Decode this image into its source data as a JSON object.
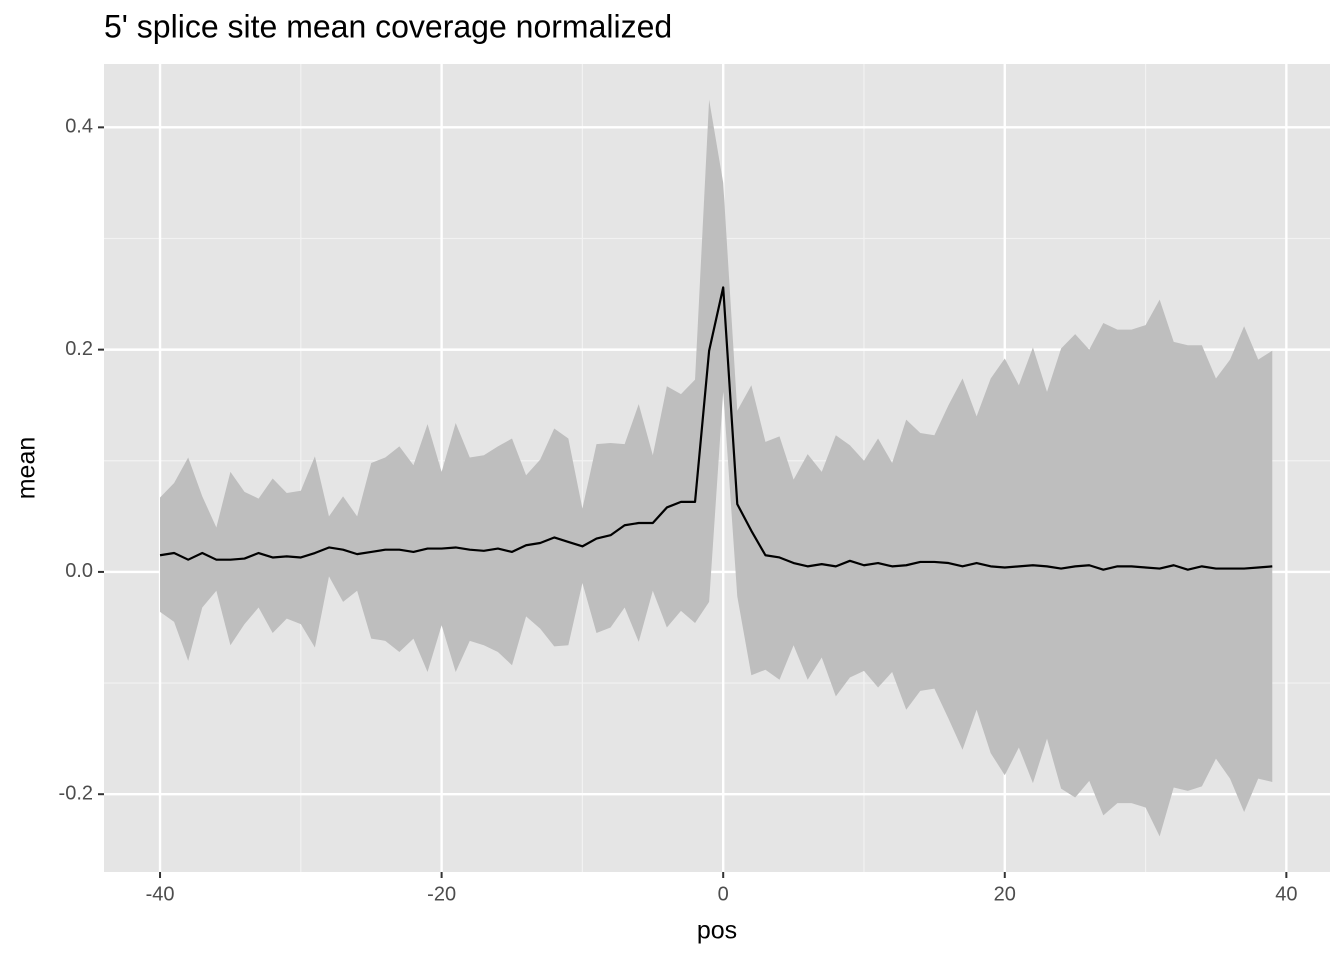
{
  "chart_data": {
    "type": "ribbon-line",
    "title": "5' splice site mean coverage normalized",
    "x_label": "pos",
    "y_label": "mean",
    "x": [
      -40,
      -39,
      -38,
      -37,
      -36,
      -35,
      -34,
      -33,
      -32,
      -31,
      -30,
      -29,
      -28,
      -27,
      -26,
      -25,
      -24,
      -23,
      -22,
      -21,
      -20,
      -19,
      -18,
      -17,
      -16,
      -15,
      -14,
      -13,
      -12,
      -11,
      -10,
      -9,
      -8,
      -7,
      -6,
      -5,
      -4,
      -3,
      -2,
      -1,
      0,
      1,
      2,
      3,
      4,
      5,
      6,
      7,
      8,
      9,
      10,
      11,
      12,
      13,
      14,
      15,
      16,
      17,
      18,
      19,
      20,
      21,
      22,
      23,
      24,
      25,
      26,
      27,
      28,
      29,
      30,
      31,
      32,
      33,
      34,
      35,
      36,
      37,
      38,
      39
    ],
    "values": [
      0.015,
      0.017,
      0.011,
      0.017,
      0.011,
      0.011,
      0.012,
      0.017,
      0.013,
      0.014,
      0.013,
      0.017,
      0.022,
      0.02,
      0.016,
      0.018,
      0.02,
      0.02,
      0.018,
      0.021,
      0.021,
      0.022,
      0.02,
      0.019,
      0.021,
      0.018,
      0.024,
      0.026,
      0.031,
      0.027,
      0.023,
      0.03,
      0.033,
      0.042,
      0.044,
      0.044,
      0.058,
      0.063,
      0.063,
      0.199,
      0.256,
      0.061,
      0.037,
      0.015,
      0.013,
      0.008,
      0.005,
      0.007,
      0.005,
      0.01,
      0.006,
      0.008,
      0.005,
      0.006,
      0.009,
      0.009,
      0.008,
      0.005,
      0.008,
      0.005,
      0.004,
      0.005,
      0.006,
      0.005,
      0.003,
      0.005,
      0.006,
      0.002,
      0.005,
      0.005,
      0.004,
      0.003,
      0.006,
      0.002,
      0.005,
      0.003,
      0.003,
      0.003,
      0.004,
      0.005
    ],
    "upper": [
      0.067,
      0.08,
      0.103,
      0.068,
      0.04,
      0.09,
      0.072,
      0.066,
      0.084,
      0.071,
      0.073,
      0.104,
      0.05,
      0.068,
      0.05,
      0.098,
      0.103,
      0.113,
      0.096,
      0.133,
      0.09,
      0.134,
      0.103,
      0.105,
      0.113,
      0.12,
      0.087,
      0.101,
      0.129,
      0.12,
      0.057,
      0.115,
      0.116,
      0.115,
      0.151,
      0.105,
      0.167,
      0.16,
      0.173,
      0.425,
      0.35,
      0.145,
      0.168,
      0.117,
      0.122,
      0.083,
      0.106,
      0.09,
      0.123,
      0.114,
      0.1,
      0.12,
      0.098,
      0.137,
      0.125,
      0.123,
      0.15,
      0.174,
      0.14,
      0.174,
      0.192,
      0.168,
      0.202,
      0.162,
      0.201,
      0.214,
      0.2,
      0.224,
      0.218,
      0.218,
      0.222,
      0.245,
      0.207,
      0.204,
      0.204,
      0.174,
      0.191,
      0.221,
      0.191,
      0.199
    ],
    "lower": [
      -0.036,
      -0.045,
      -0.08,
      -0.032,
      -0.017,
      -0.066,
      -0.047,
      -0.032,
      -0.055,
      -0.042,
      -0.047,
      -0.068,
      -0.004,
      -0.027,
      -0.017,
      -0.06,
      -0.062,
      -0.072,
      -0.06,
      -0.09,
      -0.048,
      -0.09,
      -0.062,
      -0.066,
      -0.072,
      -0.084,
      -0.04,
      -0.051,
      -0.067,
      -0.066,
      -0.01,
      -0.055,
      -0.05,
      -0.032,
      -0.063,
      -0.017,
      -0.05,
      -0.035,
      -0.046,
      -0.027,
      0.162,
      -0.022,
      -0.093,
      -0.088,
      -0.097,
      -0.066,
      -0.097,
      -0.077,
      -0.112,
      -0.095,
      -0.089,
      -0.104,
      -0.09,
      -0.124,
      -0.107,
      -0.105,
      -0.132,
      -0.16,
      -0.124,
      -0.163,
      -0.183,
      -0.158,
      -0.19,
      -0.15,
      -0.195,
      -0.203,
      -0.188,
      -0.219,
      -0.208,
      -0.208,
      -0.212,
      -0.238,
      -0.194,
      -0.197,
      -0.193,
      -0.168,
      -0.186,
      -0.216,
      -0.186,
      -0.189
    ],
    "color": "#000000",
    "ribbon_color": "#bebebe",
    "xlim": [
      -43.98,
      43.1
    ],
    "ylim": [
      -0.27,
      0.457
    ],
    "xticks": [
      -40,
      -20,
      0,
      20,
      40
    ],
    "yticks": [
      -0.2,
      {
        "value": 0,
        "label": "0.0"
      },
      0.2,
      0.4
    ],
    "xminor": [
      -30,
      -10,
      10,
      30
    ],
    "yminor": [
      -0.1,
      0.1,
      0.3
    ],
    "grid": true
  }
}
